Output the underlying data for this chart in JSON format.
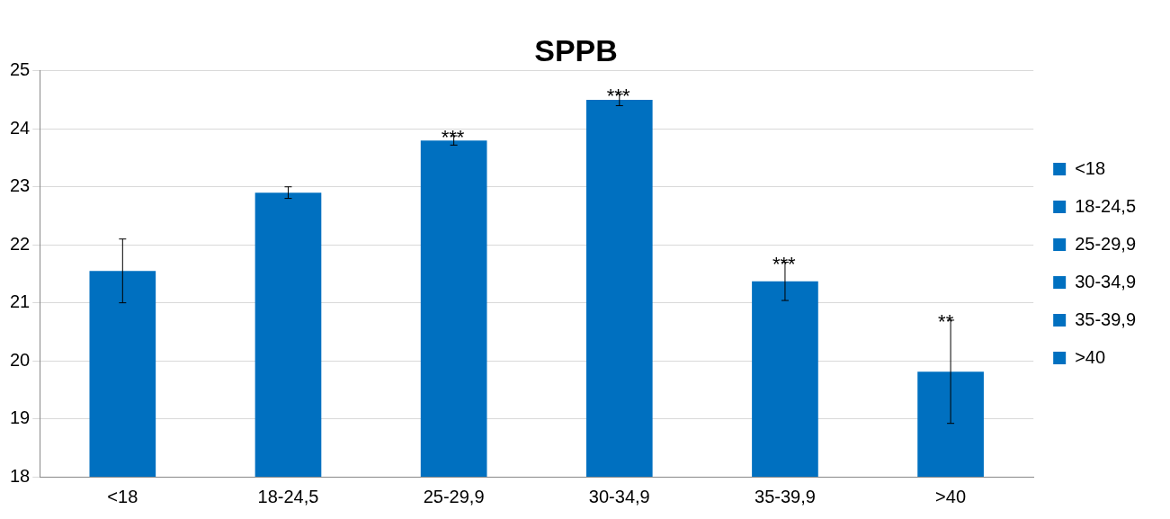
{
  "chart_data": {
    "type": "bar",
    "title": "SPPB",
    "categories": [
      "<18",
      "18-24,5",
      "25-29,9",
      "30-34,9",
      "35-39,9",
      ">40"
    ],
    "series": [
      {
        "name": "<18",
        "color": "#0070c0",
        "values": [
          21.55,
          null,
          null,
          null,
          null,
          null
        ],
        "errors": [
          0.55,
          null,
          null,
          null,
          null,
          null
        ]
      },
      {
        "name": "18-24,5",
        "color": "#0070c0",
        "values": [
          null,
          22.9,
          null,
          null,
          null,
          null
        ],
        "errors": [
          null,
          0.1,
          null,
          null,
          null,
          null
        ]
      },
      {
        "name": "25-29,9",
        "color": "#0070c0",
        "values": [
          null,
          null,
          23.8,
          null,
          null,
          null
        ],
        "errors": [
          null,
          null,
          0.08,
          null,
          null,
          null
        ]
      },
      {
        "name": "30-34,9",
        "color": "#0070c0",
        "values": [
          null,
          null,
          null,
          24.5,
          null,
          null
        ],
        "errors": [
          null,
          null,
          null,
          0.1,
          null,
          null
        ]
      },
      {
        "name": "35-39,9",
        "color": "#0070c0",
        "values": [
          null,
          null,
          null,
          null,
          21.37,
          null
        ],
        "errors": [
          null,
          null,
          null,
          null,
          0.33,
          null
        ]
      },
      {
        "name": ">40",
        "color": "#0070c0",
        "values": [
          null,
          null,
          null,
          null,
          null,
          19.81
        ],
        "errors": [
          null,
          null,
          null,
          null,
          null,
          0.89
        ]
      }
    ],
    "ylim": [
      18,
      25
    ],
    "yticks": [
      18,
      19,
      20,
      21,
      22,
      23,
      24,
      25
    ],
    "grid": "y",
    "legend": "right",
    "annotations": [
      {
        "text": "***",
        "x": "25-29,9",
        "y": 23.88
      },
      {
        "text": "***",
        "x": "30-34,9",
        "y": 24.6
      },
      {
        "text": "***",
        "x": "35-39,9",
        "y": 21.7
      },
      {
        "text": "**",
        "x": ">40",
        "y": 20.7
      }
    ]
  }
}
